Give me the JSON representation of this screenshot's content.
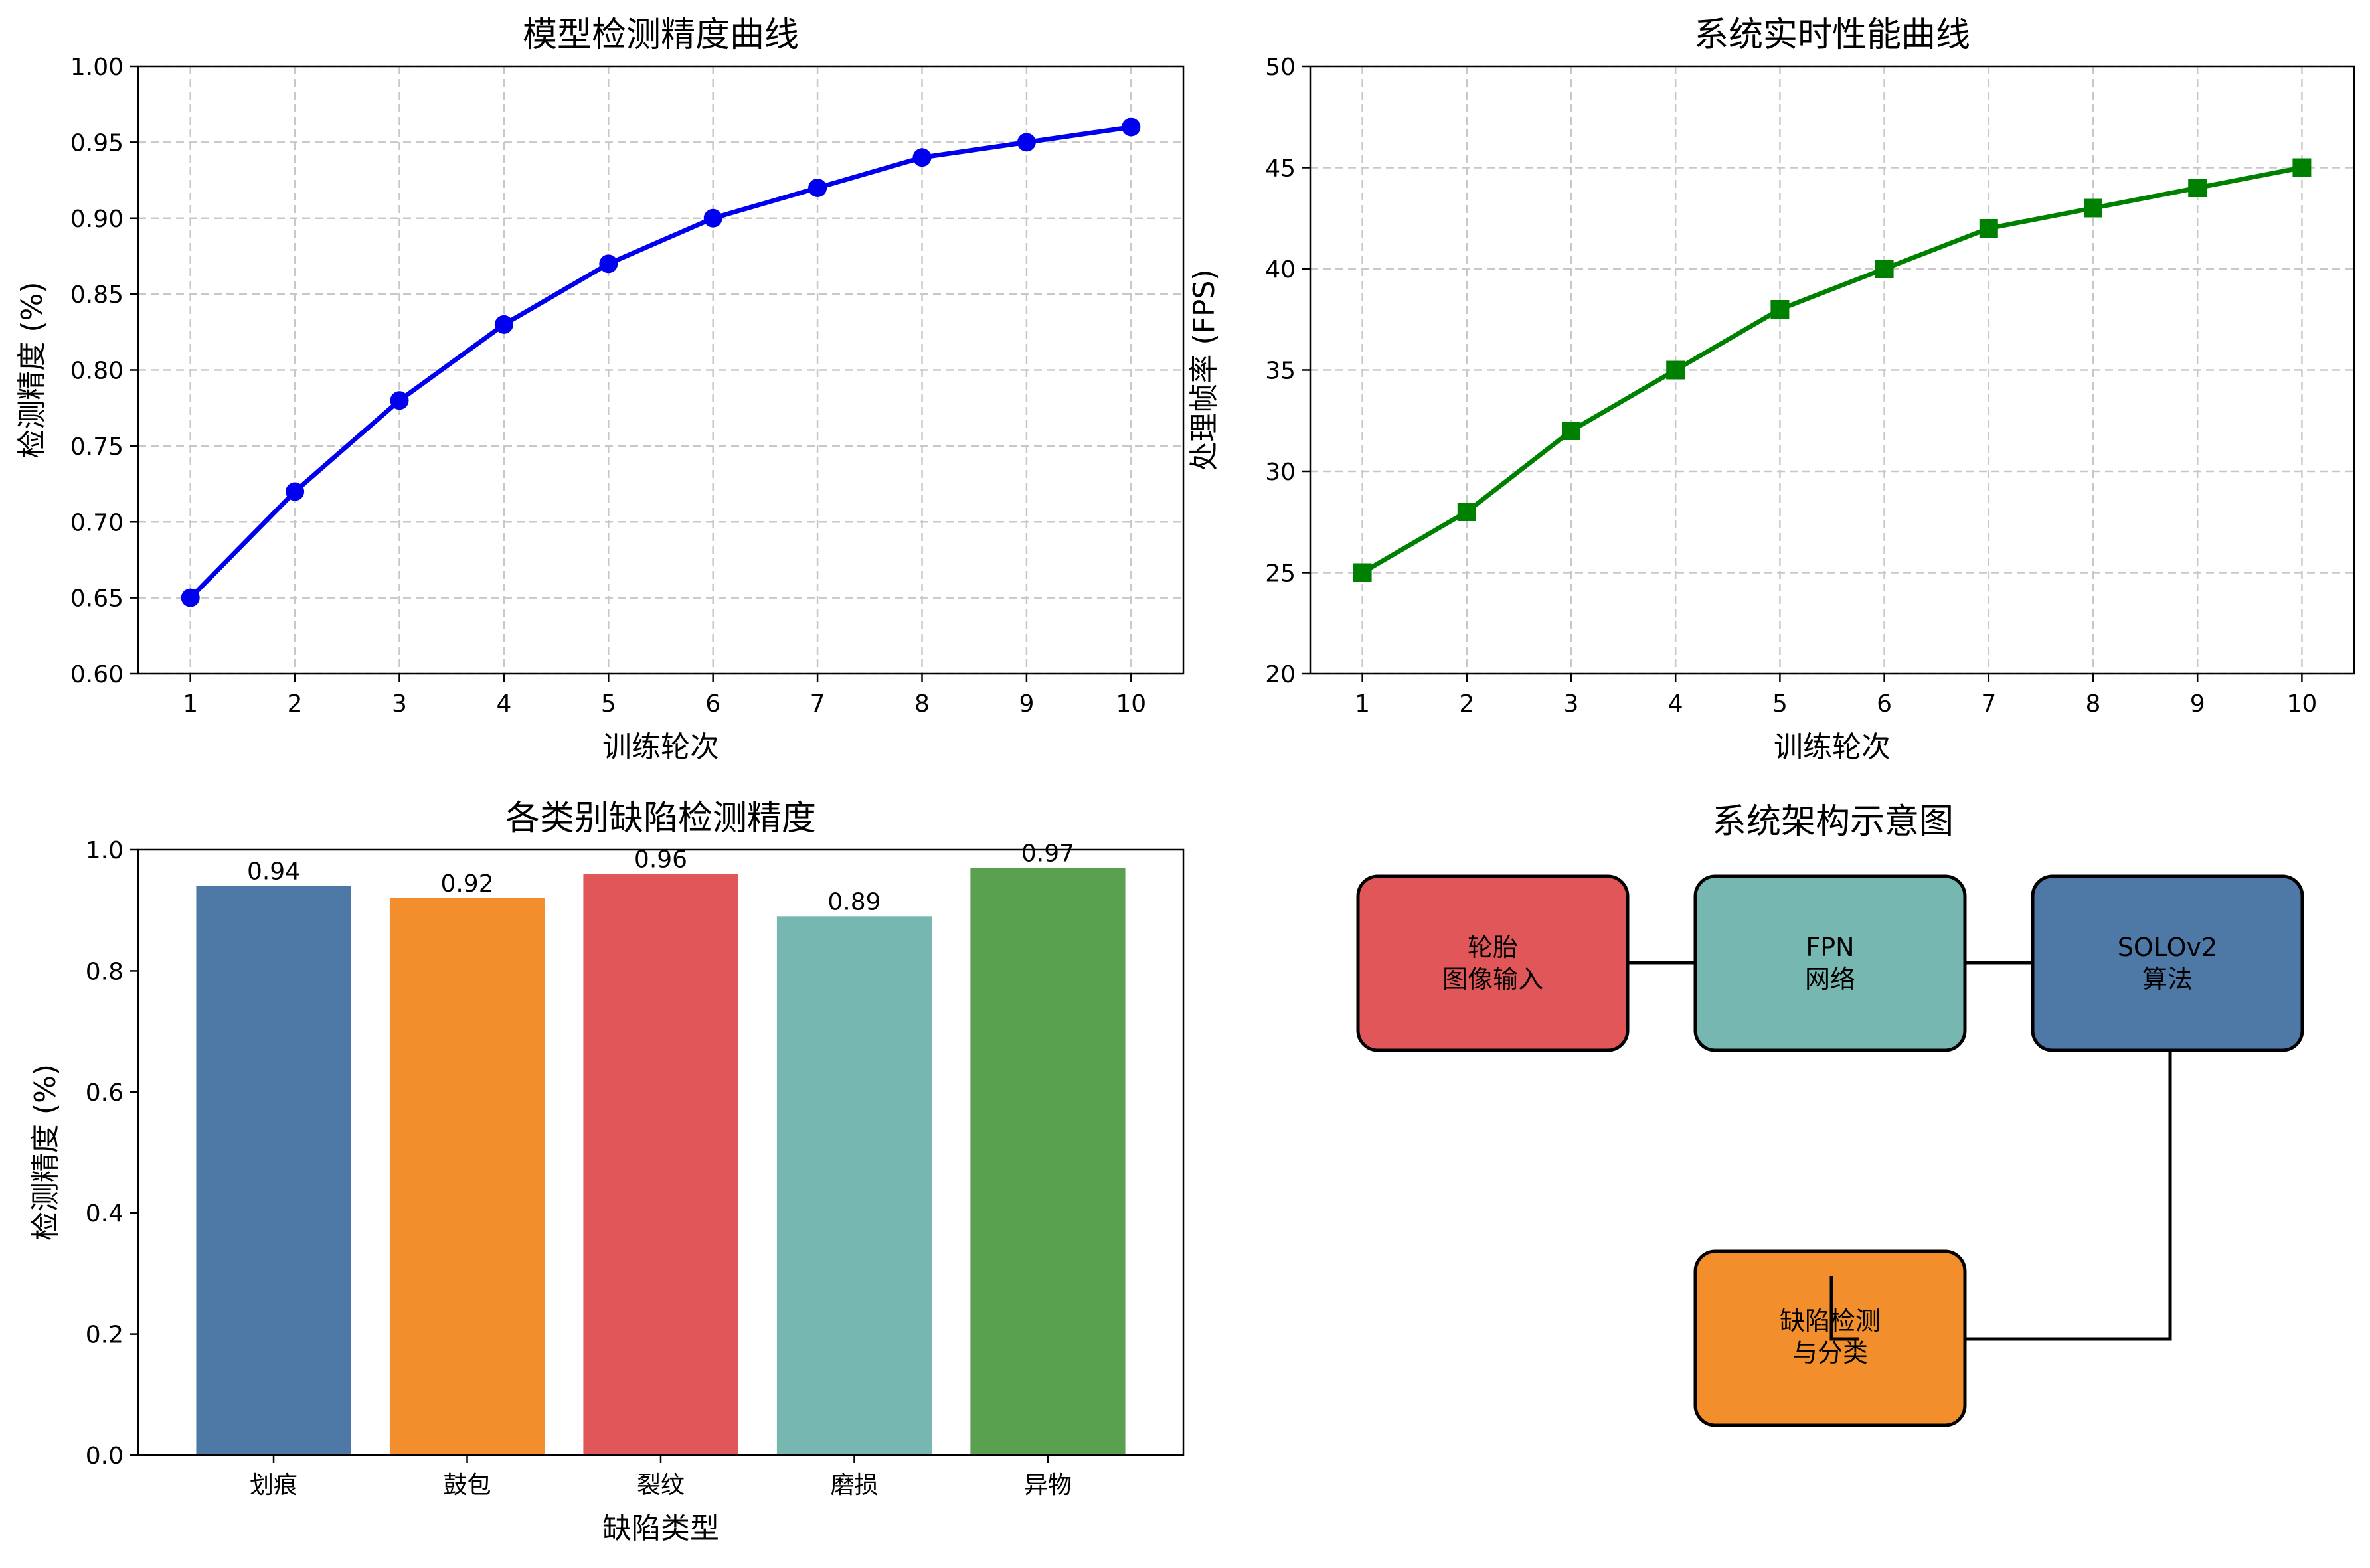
{
  "chart_data": [
    {
      "type": "line",
      "title": "模型检测精度曲线",
      "xlabel": "训练轮次",
      "ylabel": "检测精度 (%)",
      "x": [
        1,
        2,
        3,
        4,
        5,
        6,
        7,
        8,
        9,
        10
      ],
      "series": [
        {
          "values": [
            0.65,
            0.72,
            0.78,
            0.83,
            0.87,
            0.9,
            0.92,
            0.94,
            0.95,
            0.96
          ],
          "color": "#0000ee",
          "marker": "circle"
        }
      ],
      "xlim": [
        0.5,
        10.5
      ],
      "ylim": [
        0.6,
        1.0
      ],
      "yticks": [
        "0.60",
        "0.65",
        "0.70",
        "0.75",
        "0.80",
        "0.85",
        "0.90",
        "0.95",
        "1.00"
      ],
      "xticks": [
        "1",
        "2",
        "3",
        "4",
        "5",
        "6",
        "7",
        "8",
        "9",
        "10"
      ],
      "grid": true
    },
    {
      "type": "line",
      "title": "系统实时性能曲线",
      "xlabel": "训练轮次",
      "ylabel": "处理帧率 (FPS)",
      "x": [
        1,
        2,
        3,
        4,
        5,
        6,
        7,
        8,
        9,
        10
      ],
      "series": [
        {
          "values": [
            25,
            28,
            32,
            35,
            38,
            40,
            42,
            43,
            44,
            45
          ],
          "color": "#008000",
          "marker": "square"
        }
      ],
      "xlim": [
        0.5,
        10.5
      ],
      "ylim": [
        20,
        50
      ],
      "yticks": [
        "20",
        "25",
        "30",
        "35",
        "40",
        "45",
        "50"
      ],
      "xticks": [
        "1",
        "2",
        "3",
        "4",
        "5",
        "6",
        "7",
        "8",
        "9",
        "10"
      ],
      "grid": true
    },
    {
      "type": "bar",
      "title": "各类别缺陷检测精度",
      "xlabel": "缺陷类型",
      "ylabel": "检测精度 (%)",
      "categories": [
        "划痕",
        "鼓包",
        "裂纹",
        "磨损",
        "异物"
      ],
      "values": [
        0.94,
        0.92,
        0.96,
        0.89,
        0.97
      ],
      "value_labels": [
        "0.94",
        "0.92",
        "0.96",
        "0.89",
        "0.97"
      ],
      "colors": [
        "#4e79a7",
        "#f28e2b",
        "#e15759",
        "#76b7b2",
        "#59a14f"
      ],
      "ylim": [
        0,
        1.0
      ],
      "yticks": [
        "0.0",
        "0.2",
        "0.4",
        "0.6",
        "0.8",
        "1.0"
      ],
      "grid": false
    }
  ],
  "diagram": {
    "title": "系统架构示意图",
    "nodes": [
      {
        "lines": [
          "轮胎",
          "图像输入"
        ],
        "color": "#e15759"
      },
      {
        "lines": [
          "FPN",
          "网络"
        ],
        "color": "#76b7b2"
      },
      {
        "lines": [
          "SOLOv2",
          "算法"
        ],
        "color": "#4e79a7"
      },
      {
        "lines": [
          "缺陷检测",
          "与分类"
        ],
        "color": "#f28e2b"
      }
    ]
  }
}
